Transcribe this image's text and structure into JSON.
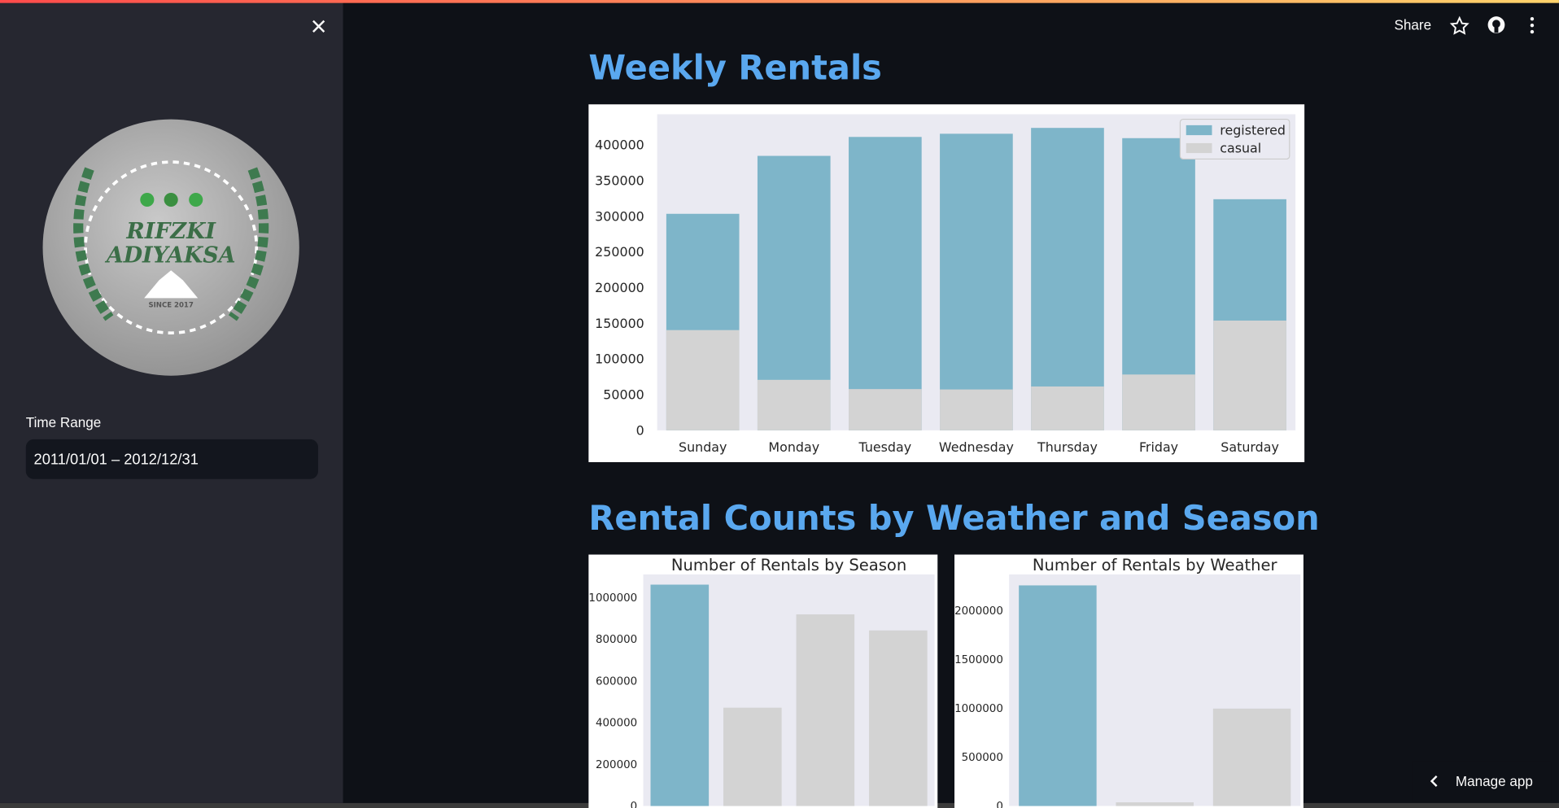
{
  "header": {
    "share": "Share"
  },
  "sidebar": {
    "logo": {
      "line1": "RIFZKI",
      "line2": "ADIYAKSA",
      "since": "SINCE 2017"
    },
    "time_range_label": "Time Range",
    "time_range_value": "2011/01/01 – 2012/12/31"
  },
  "headings": [
    "Weekly Rentals",
    "Rental Counts by Weather and Season"
  ],
  "footer": {
    "manage_app": "Manage app"
  },
  "chart_data": [
    {
      "type": "bar",
      "categories": [
        "Sunday",
        "Monday",
        "Tuesday",
        "Wednesday",
        "Thursday",
        "Friday",
        "Saturday"
      ],
      "series": [
        {
          "name": "registered",
          "color": "#7eb5c9",
          "values": [
            303506,
            384719,
            411266,
            415729,
            423935,
            409552,
            323955
          ]
        },
        {
          "name": "casual",
          "color": "#d3d3d3",
          "values": [
            140521,
            70784,
            57843,
            57319,
            61460,
            78238,
            153852
          ]
        }
      ],
      "ylim": [
        0,
        443000
      ],
      "yticks": [
        0,
        50000,
        100000,
        150000,
        200000,
        250000,
        300000,
        350000,
        400000
      ],
      "legend": "upper right",
      "grid": false
    },
    {
      "type": "bar",
      "title": "Number of Rentals by Season",
      "categories": [
        null,
        null,
        null,
        null
      ],
      "values": [
        1061129,
        471348,
        918589,
        841613
      ],
      "colors": [
        "#7eb5c9",
        "#d3d3d3",
        "#d3d3d3",
        "#d3d3d3"
      ],
      "ylim": [
        0,
        1110000
      ],
      "yticks": [
        0,
        200000,
        400000,
        600000,
        800000,
        1000000
      ],
      "grid": false
    },
    {
      "type": "bar",
      "title": "Number of Rentals by Weather",
      "categories": [
        null,
        null,
        null
      ],
      "values": [
        2257952,
        37869,
        996858
      ],
      "colors": [
        "#7eb5c9",
        "#d3d3d3",
        "#d3d3d3"
      ],
      "ylim": [
        0,
        2370000
      ],
      "yticks": [
        0,
        500000,
        1000000,
        1500000,
        2000000
      ],
      "grid": false
    }
  ]
}
